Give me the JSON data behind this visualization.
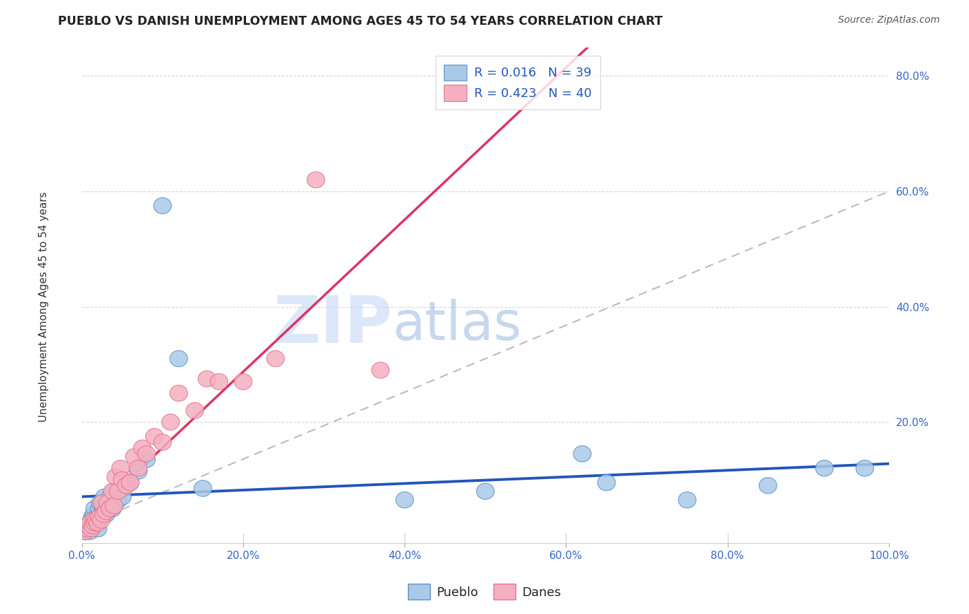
{
  "title": "PUEBLO VS DANISH UNEMPLOYMENT AMONG AGES 45 TO 54 YEARS CORRELATION CHART",
  "source": "Source: ZipAtlas.com",
  "ylabel": "Unemployment Among Ages 45 to 54 years",
  "xlim": [
    0,
    1.0
  ],
  "ylim": [
    -0.01,
    0.85
  ],
  "xticks": [
    0.0,
    0.2,
    0.4,
    0.6,
    0.8,
    1.0
  ],
  "xtick_labels": [
    "0.0%",
    "20.0%",
    "40.0%",
    "60.0%",
    "80.0%",
    "100.0%"
  ],
  "yticks": [
    0.2,
    0.4,
    0.6,
    0.8
  ],
  "ytick_labels": [
    "20.0%",
    "40.0%",
    "60.0%",
    "80.0%"
  ],
  "legend_r1": "R = 0.016",
  "legend_n1": "N = 39",
  "legend_r2": "R = 0.423",
  "legend_n2": "N = 40",
  "pueblo_color": "#aac9e8",
  "danes_color": "#f5afc0",
  "pueblo_edge": "#5b8fc9",
  "danes_edge": "#e0758a",
  "regline_pueblo_color": "#2255bb",
  "regline_danes_color": "#dd3366",
  "dashed_line_color": "#bbbbbb",
  "pueblo_x": [
    0.005,
    0.007,
    0.008,
    0.01,
    0.01,
    0.012,
    0.013,
    0.014,
    0.015,
    0.016,
    0.018,
    0.02,
    0.02,
    0.022,
    0.023,
    0.025,
    0.027,
    0.028,
    0.03,
    0.032,
    0.035,
    0.038,
    0.04,
    0.045,
    0.05,
    0.06,
    0.07,
    0.08,
    0.1,
    0.12,
    0.15,
    0.4,
    0.5,
    0.62,
    0.65,
    0.75,
    0.85,
    0.92,
    0.97
  ],
  "pueblo_y": [
    0.01,
    0.015,
    0.02,
    0.01,
    0.025,
    0.03,
    0.035,
    0.025,
    0.04,
    0.05,
    0.035,
    0.015,
    0.03,
    0.05,
    0.06,
    0.04,
    0.055,
    0.07,
    0.04,
    0.06,
    0.07,
    0.05,
    0.08,
    0.065,
    0.07,
    0.095,
    0.115,
    0.135,
    0.575,
    0.31,
    0.085,
    0.065,
    0.08,
    0.145,
    0.095,
    0.065,
    0.09,
    0.12,
    0.12
  ],
  "danes_x": [
    0.004,
    0.006,
    0.008,
    0.01,
    0.012,
    0.014,
    0.015,
    0.016,
    0.018,
    0.02,
    0.022,
    0.024,
    0.025,
    0.027,
    0.03,
    0.032,
    0.035,
    0.038,
    0.04,
    0.042,
    0.045,
    0.048,
    0.05,
    0.055,
    0.06,
    0.065,
    0.07,
    0.075,
    0.08,
    0.09,
    0.1,
    0.11,
    0.12,
    0.14,
    0.155,
    0.17,
    0.2,
    0.24,
    0.29,
    0.37
  ],
  "danes_y": [
    0.01,
    0.015,
    0.02,
    0.025,
    0.015,
    0.02,
    0.03,
    0.025,
    0.03,
    0.025,
    0.035,
    0.03,
    0.06,
    0.04,
    0.045,
    0.06,
    0.05,
    0.08,
    0.055,
    0.105,
    0.08,
    0.12,
    0.1,
    0.09,
    0.095,
    0.14,
    0.12,
    0.155,
    0.145,
    0.175,
    0.165,
    0.2,
    0.25,
    0.22,
    0.275,
    0.27,
    0.27,
    0.31,
    0.62,
    0.29
  ],
  "background_color": "#ffffff",
  "grid_color": "#cccccc",
  "watermark_zip_color": "#c8d8f0",
  "watermark_atlas_color": "#a8bce0"
}
